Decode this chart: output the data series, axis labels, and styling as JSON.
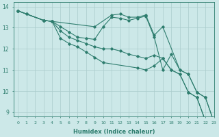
{
  "xlabel": "Humidex (Indice chaleur)",
  "bg_color": "#cce8e8",
  "grid_color": "#aacccc",
  "line_color": "#2e7d6e",
  "xlim": [
    -0.5,
    23
  ],
  "ylim": [
    8.8,
    14.2
  ],
  "yticks": [
    9,
    10,
    11,
    12,
    13,
    14
  ],
  "xticks": [
    0,
    1,
    2,
    3,
    4,
    5,
    6,
    7,
    8,
    9,
    10,
    11,
    12,
    13,
    14,
    15,
    16,
    17,
    18,
    19,
    20,
    21,
    22,
    23
  ],
  "lines": [
    {
      "x": [
        0,
        1,
        3,
        4,
        9,
        11,
        12,
        13,
        14,
        15,
        16,
        17,
        19,
        20,
        21,
        22,
        23
      ],
      "y": [
        13.8,
        13.65,
        13.35,
        13.3,
        13.05,
        13.6,
        13.65,
        13.5,
        13.5,
        13.6,
        12.65,
        13.05,
        11.0,
        10.8,
        9.95,
        9.7,
        8.55
      ]
    },
    {
      "x": [
        0,
        1,
        3,
        4,
        5,
        6,
        7,
        8,
        9,
        10,
        11,
        12,
        13,
        14,
        15,
        16,
        17,
        18,
        19,
        20,
        21,
        22,
        23
      ],
      "y": [
        13.8,
        13.65,
        13.35,
        13.3,
        13.05,
        12.8,
        12.55,
        12.5,
        12.45,
        13.05,
        13.5,
        13.45,
        13.35,
        13.45,
        13.55,
        12.55,
        11.0,
        11.75,
        11.0,
        10.8,
        9.95,
        9.7,
        8.55
      ]
    },
    {
      "x": [
        0,
        3,
        4,
        5,
        6,
        7,
        8,
        9,
        10,
        11,
        12,
        13,
        14,
        15,
        16,
        17,
        18,
        19,
        20,
        21,
        22,
        23
      ],
      "y": [
        13.8,
        13.35,
        13.3,
        12.85,
        12.55,
        12.4,
        12.25,
        12.1,
        12.0,
        12.0,
        11.9,
        11.75,
        11.65,
        11.55,
        11.7,
        11.55,
        11.0,
        10.8,
        9.95,
        9.7,
        8.6,
        8.55
      ]
    },
    {
      "x": [
        0,
        3,
        4,
        5,
        6,
        7,
        8,
        9,
        10,
        14,
        15,
        16,
        17,
        18,
        19,
        20,
        21,
        22,
        23
      ],
      "y": [
        13.8,
        13.35,
        13.3,
        12.5,
        12.25,
        12.1,
        11.85,
        11.6,
        11.35,
        11.1,
        11.0,
        11.2,
        11.55,
        11.0,
        10.8,
        9.95,
        9.7,
        8.6,
        8.55
      ]
    }
  ]
}
